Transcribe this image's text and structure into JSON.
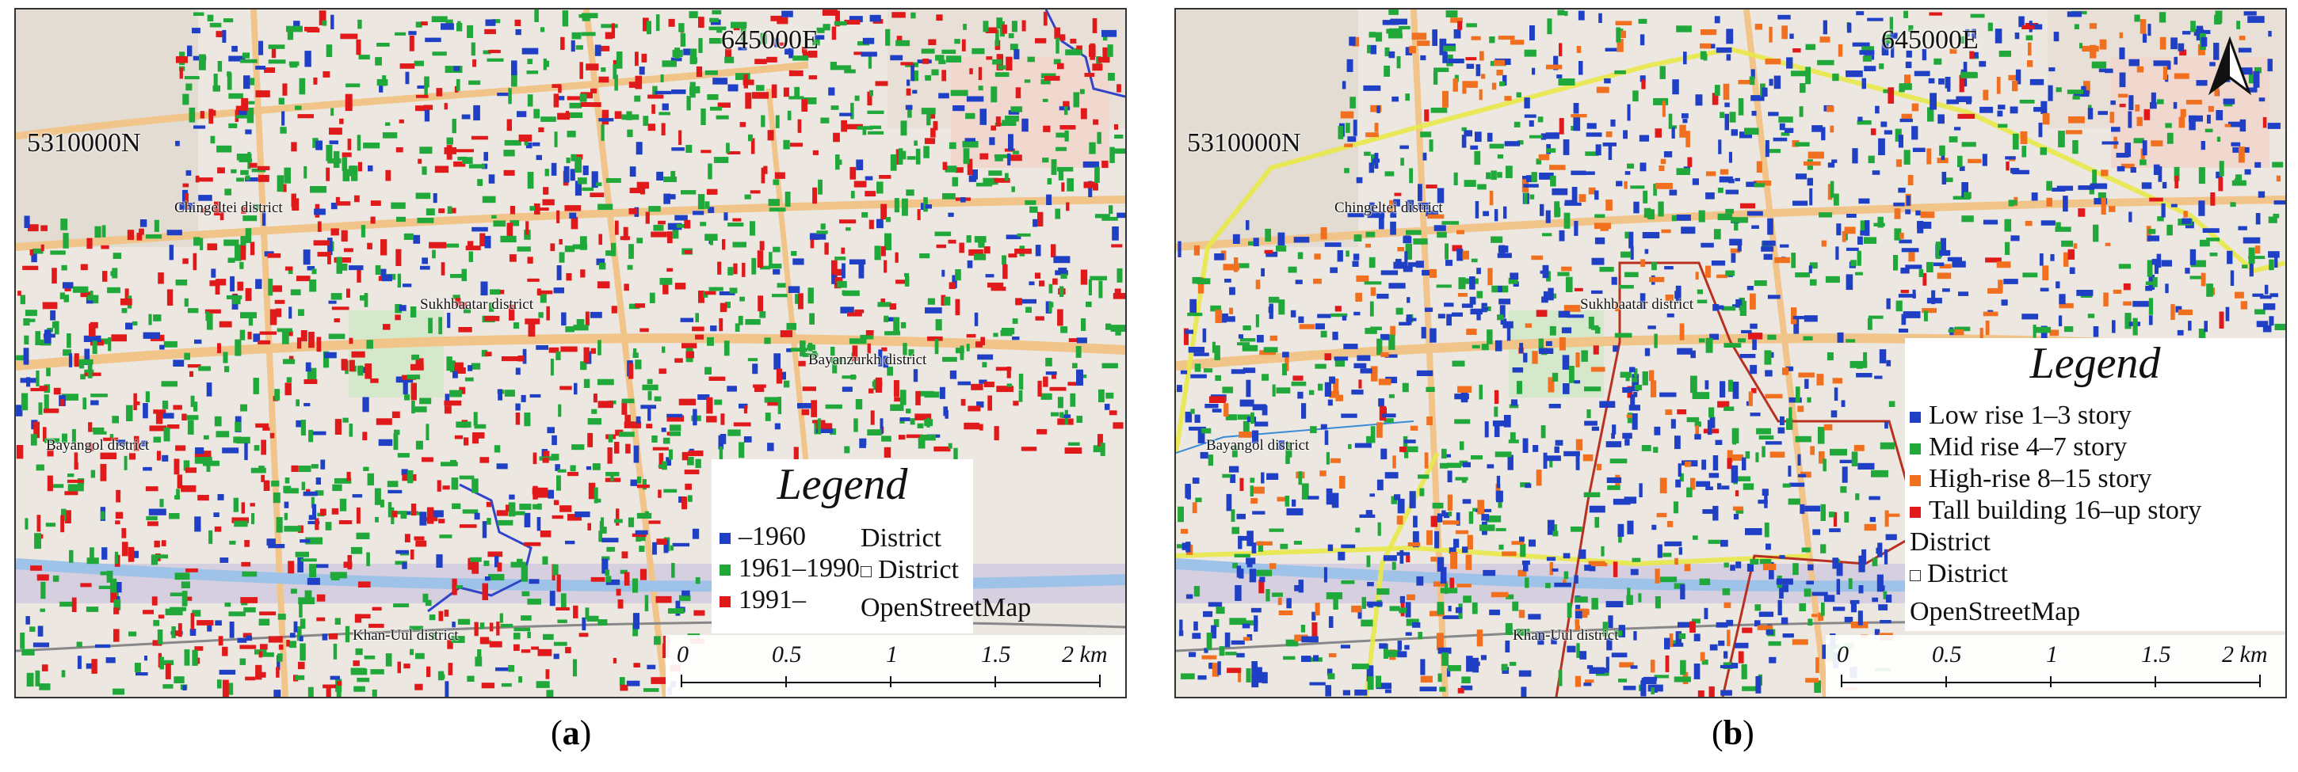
{
  "panels": [
    {
      "caption_letter": "a",
      "coord_e": "645000E",
      "coord_n": "5310000N",
      "districts": [
        "Chingeltei district",
        "Sukhbaatar district",
        "Bayanzurkh district",
        "Bayangol district",
        "Khan-Uul district"
      ],
      "legend": {
        "title": "Legend",
        "items": [
          {
            "label": "–1960",
            "color": "#1f3fc4"
          },
          {
            "label": "1961–1990",
            "color": "#21a83a"
          },
          {
            "label": "1991–",
            "color": "#e01a1a"
          }
        ],
        "district_heading": "District",
        "district_item": "District",
        "basemap": "OpenStreetMap"
      },
      "scale": [
        "0",
        "0.5",
        "1",
        "1.5",
        "2 km"
      ]
    },
    {
      "caption_letter": "b",
      "coord_e": "645000E",
      "coord_n": "5310000N",
      "districts": [
        "Chingeltei district",
        "Sukhbaatar district",
        "Bayangol district",
        "Khan-Uul district"
      ],
      "legend": {
        "title": "Legend",
        "items": [
          {
            "label": "Low rise 1–3 story",
            "color": "#1f3fc4"
          },
          {
            "label": "Mid rise 4–7 story",
            "color": "#21a83a"
          },
          {
            "label": "High-rise 8–15 story",
            "color": "#f07020"
          },
          {
            "label": "Tall building 16–up story",
            "color": "#e01a1a"
          }
        ],
        "district_heading": "District",
        "district_item": "District",
        "basemap": "OpenStreetMap"
      },
      "scale": [
        "0",
        "0.5",
        "1",
        "1.5",
        "2 km"
      ]
    }
  ],
  "colors": {
    "basemap": "#ece8e1",
    "road": "#f1c48a",
    "district_boundary_b": "#e8e84a",
    "river": "#9fc3e8"
  },
  "north_arrow_icon": "north-arrow-icon"
}
